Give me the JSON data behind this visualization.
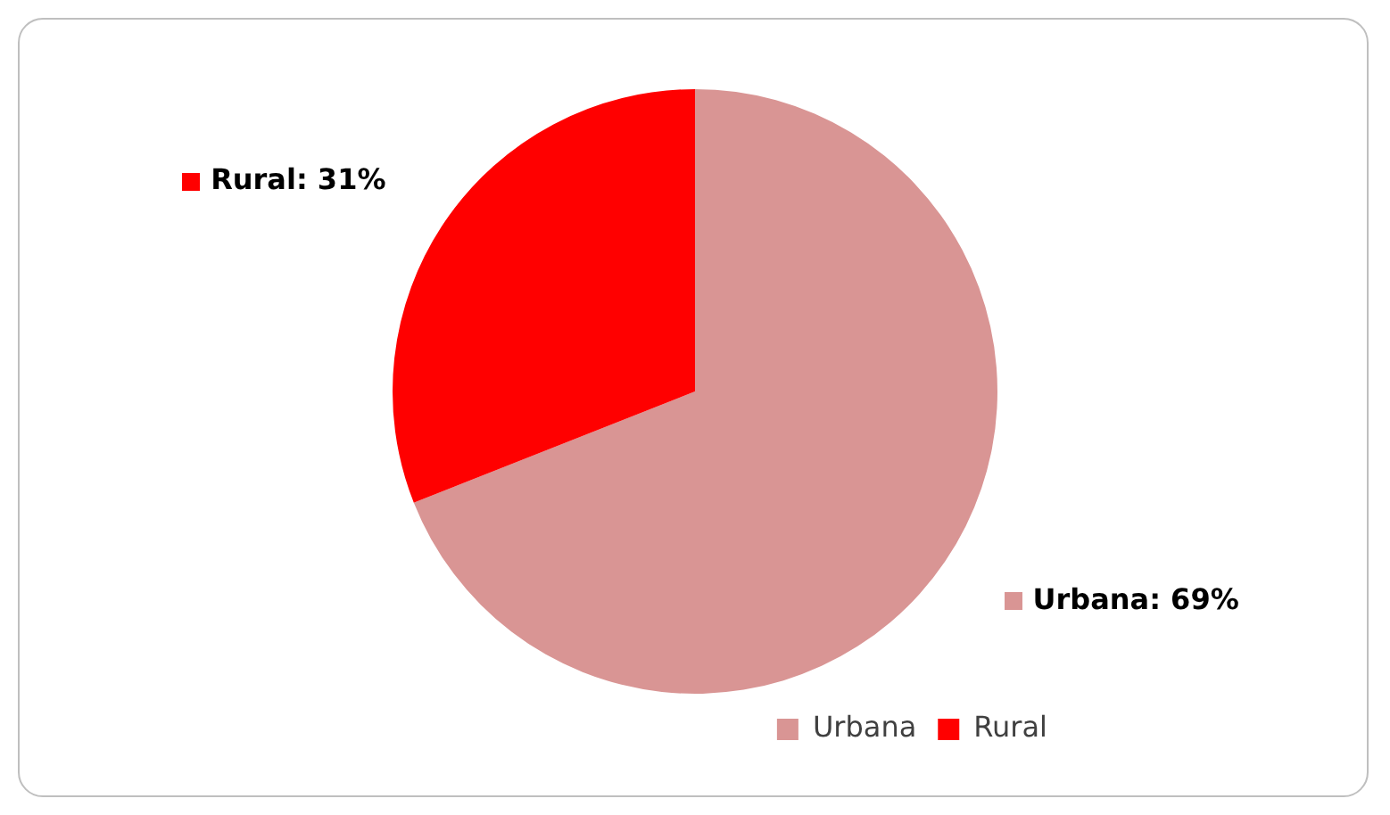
{
  "chart_data": {
    "type": "pie",
    "categories": [
      "Urbana",
      "Rural"
    ],
    "values": [
      69,
      31
    ],
    "colors": [
      "#d99594",
      "#ff0000"
    ],
    "value_labels": [
      "Urbana: 69%",
      "Rural: 31%"
    ],
    "legend": "bottom right"
  }
}
